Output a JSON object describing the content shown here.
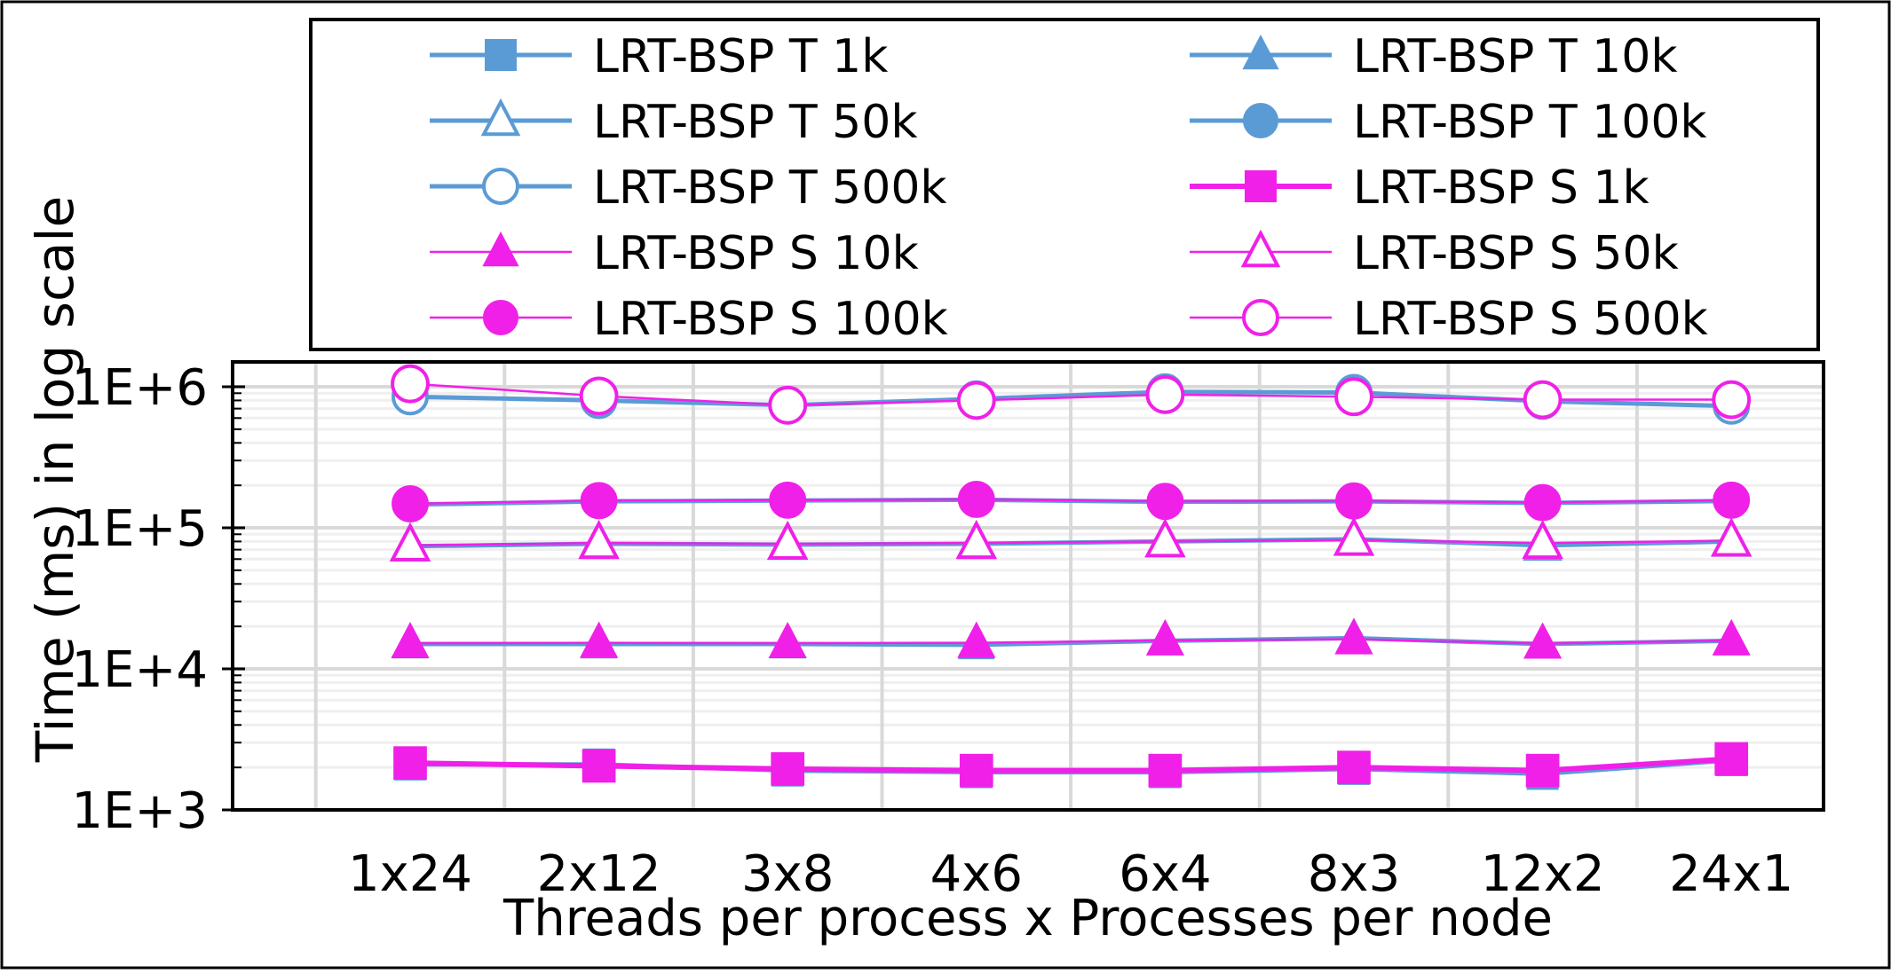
{
  "chart_data": {
    "type": "line",
    "title": "",
    "xlabel": "Threads per process x Processes per node",
    "ylabel": "Time (ms) in log scale",
    "yscale": "log",
    "ylim": [
      1000,
      1500000
    ],
    "grid": true,
    "legend_position": "top",
    "categories": [
      "1x24",
      "2x12",
      "3x8",
      "4x6",
      "6x4",
      "8x3",
      "12x2",
      "24x1"
    ],
    "y_ticks": [
      {
        "value": 1000,
        "label": "1E+3"
      },
      {
        "value": 10000,
        "label": "1E+4"
      },
      {
        "value": 100000,
        "label": "1E+5"
      },
      {
        "value": 1000000,
        "label": "1E+6"
      }
    ],
    "series": [
      {
        "name": "LRT-BSP T 1k",
        "color": "#5B9BD5",
        "marker": "square",
        "filled": true,
        "values": [
          2100,
          2100,
          1900,
          1850,
          1850,
          1950,
          1800,
          2250
        ]
      },
      {
        "name": "LRT-BSP T 10k",
        "color": "#5B9BD5",
        "marker": "triangle",
        "filled": true,
        "values": [
          15000,
          15000,
          15000,
          14800,
          15800,
          16500,
          15000,
          15800
        ]
      },
      {
        "name": "LRT-BSP T 50k",
        "color": "#5B9BD5",
        "marker": "triangle",
        "filled": false,
        "values": [
          74000,
          77000,
          76000,
          77000,
          80000,
          83000,
          75000,
          80000
        ]
      },
      {
        "name": "LRT-BSP T 100k",
        "color": "#5B9BD5",
        "marker": "circle",
        "filled": true,
        "values": [
          146000,
          154000,
          156000,
          158000,
          153000,
          154000,
          150000,
          155000
        ]
      },
      {
        "name": "LRT-BSP T 500k",
        "color": "#5B9BD5",
        "marker": "circle",
        "filled": false,
        "values": [
          850000,
          800000,
          740000,
          820000,
          920000,
          910000,
          790000,
          730000
        ]
      },
      {
        "name": "LRT-BSP S 1k",
        "color": "#F020E8",
        "marker": "square",
        "filled": true,
        "values": [
          2150,
          2050,
          1950,
          1900,
          1900,
          2000,
          1900,
          2300
        ]
      },
      {
        "name": "LRT-BSP S 10k",
        "color": "#F020E8",
        "marker": "triangle",
        "filled": true,
        "values": [
          15200,
          15300,
          15200,
          15300,
          15900,
          16200,
          15100,
          15900
        ]
      },
      {
        "name": "LRT-BSP S 50k",
        "color": "#F020E8",
        "marker": "triangle",
        "filled": false,
        "values": [
          75000,
          78000,
          77000,
          78000,
          80000,
          82000,
          78000,
          81000
        ]
      },
      {
        "name": "LRT-BSP S 100k",
        "color": "#F020E8",
        "marker": "circle",
        "filled": true,
        "values": [
          148000,
          156000,
          157000,
          159000,
          154000,
          155000,
          151000,
          157000
        ]
      },
      {
        "name": "LRT-BSP S 500k",
        "color": "#F020E8",
        "marker": "circle",
        "filled": false,
        "values": [
          1050000,
          860000,
          740000,
          800000,
          880000,
          850000,
          810000,
          810000
        ]
      }
    ]
  }
}
